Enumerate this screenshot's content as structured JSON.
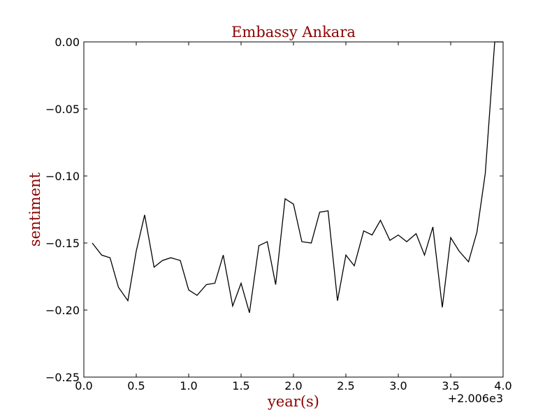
{
  "chart_data": {
    "type": "line",
    "title": "Embassy Ankara",
    "xlabel": "year(s)",
    "ylabel": "sentiment",
    "x_offset_label": "+2.006e3",
    "xlim": [
      0.0,
      4.0
    ],
    "ylim": [
      -0.25,
      0.0
    ],
    "x_ticks": [
      "0.0",
      "0.5",
      "1.0",
      "1.5",
      "2.0",
      "2.5",
      "3.0",
      "3.5",
      "4.0"
    ],
    "y_ticks": [
      "0.00",
      "−0.05",
      "−0.10",
      "−0.15",
      "−0.20",
      "−0.25"
    ],
    "grid": false,
    "series": [
      {
        "color": "#000000",
        "points": [
          [
            0.08,
            -0.15
          ],
          [
            0.17,
            -0.159
          ],
          [
            0.25,
            -0.161
          ],
          [
            0.33,
            -0.183
          ],
          [
            0.42,
            -0.193
          ],
          [
            0.5,
            -0.156
          ],
          [
            0.58,
            -0.129
          ],
          [
            0.67,
            -0.168
          ],
          [
            0.75,
            -0.163
          ],
          [
            0.83,
            -0.161
          ],
          [
            0.92,
            -0.163
          ],
          [
            1.0,
            -0.185
          ],
          [
            1.08,
            -0.189
          ],
          [
            1.17,
            -0.181
          ],
          [
            1.25,
            -0.18
          ],
          [
            1.33,
            -0.159
          ],
          [
            1.42,
            -0.197
          ],
          [
            1.5,
            -0.18
          ],
          [
            1.58,
            -0.202
          ],
          [
            1.67,
            -0.152
          ],
          [
            1.75,
            -0.149
          ],
          [
            1.83,
            -0.181
          ],
          [
            1.92,
            -0.117
          ],
          [
            2.0,
            -0.121
          ],
          [
            2.08,
            -0.149
          ],
          [
            2.17,
            -0.15
          ],
          [
            2.25,
            -0.127
          ],
          [
            2.33,
            -0.126
          ],
          [
            2.42,
            -0.193
          ],
          [
            2.5,
            -0.159
          ],
          [
            2.58,
            -0.167
          ],
          [
            2.67,
            -0.141
          ],
          [
            2.75,
            -0.144
          ],
          [
            2.83,
            -0.133
          ],
          [
            2.92,
            -0.148
          ],
          [
            3.0,
            -0.144
          ],
          [
            3.08,
            -0.149
          ],
          [
            3.17,
            -0.143
          ],
          [
            3.25,
            -0.159
          ],
          [
            3.33,
            -0.138
          ],
          [
            3.42,
            -0.198
          ],
          [
            3.5,
            -0.146
          ],
          [
            3.58,
            -0.156
          ],
          [
            3.67,
            -0.164
          ],
          [
            3.75,
            -0.142
          ],
          [
            3.83,
            -0.098
          ],
          [
            3.92,
            0.0
          ],
          [
            4.0,
            0.0
          ]
        ]
      }
    ]
  }
}
